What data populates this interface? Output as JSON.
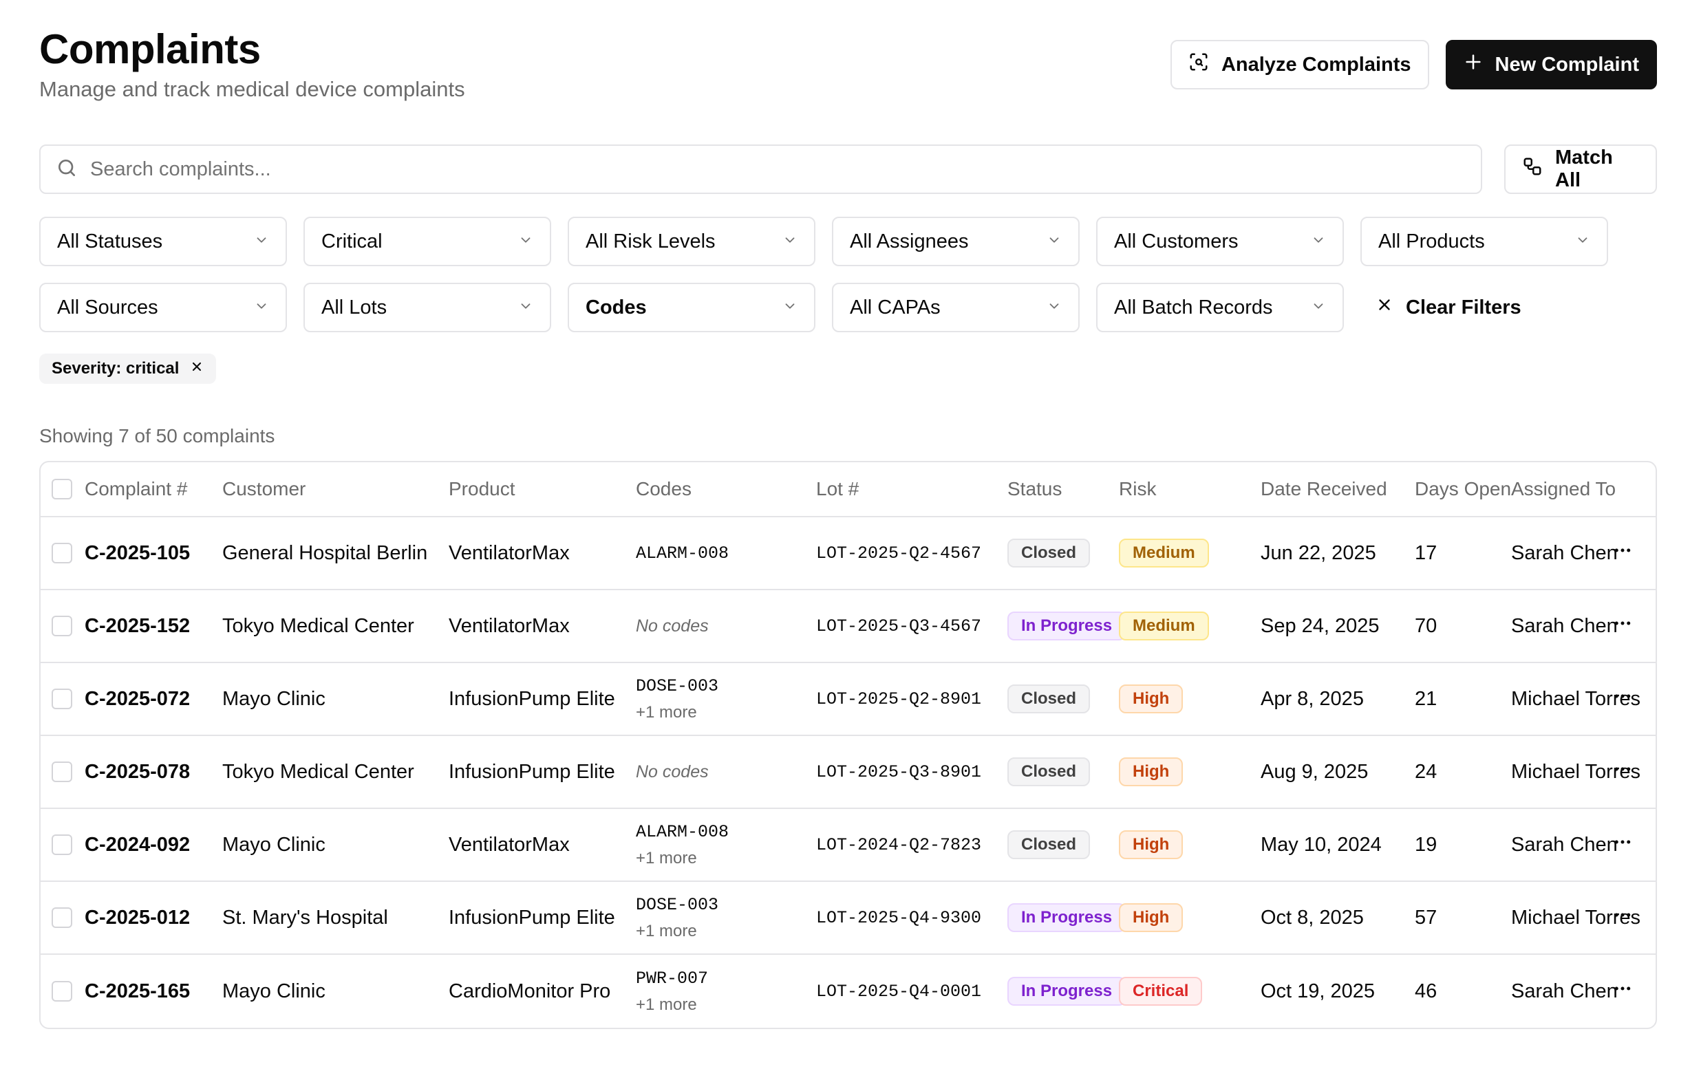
{
  "header": {
    "title": "Complaints",
    "subtitle": "Manage and track medical device complaints",
    "analyze_label": "Analyze Complaints",
    "new_label": "New Complaint"
  },
  "search": {
    "placeholder": "Search complaints...",
    "value": "",
    "match_label": "Match All"
  },
  "filters": [
    {
      "name": "status-filter",
      "label": "All Statuses",
      "bold": false
    },
    {
      "name": "severity-filter",
      "label": "Critical",
      "bold": false
    },
    {
      "name": "risk-filter",
      "label": "All Risk Levels",
      "bold": false
    },
    {
      "name": "assignee-filter",
      "label": "All Assignees",
      "bold": false
    },
    {
      "name": "customer-filter",
      "label": "All Customers",
      "bold": false
    },
    {
      "name": "product-filter",
      "label": "All Products",
      "bold": false
    },
    {
      "name": "source-filter",
      "label": "All Sources",
      "bold": false
    },
    {
      "name": "lot-filter",
      "label": "All Lots",
      "bold": false
    },
    {
      "name": "codes-filter",
      "label": "Codes",
      "bold": true
    },
    {
      "name": "capa-filter",
      "label": "All CAPAs",
      "bold": false
    },
    {
      "name": "batch-filter",
      "label": "All Batch Records",
      "bold": false
    }
  ],
  "clear_filters_label": "Clear Filters",
  "active_chip": "Severity: critical",
  "showing_text": "Showing 7 of 50 complaints",
  "table": {
    "columns": [
      "Complaint #",
      "Customer",
      "Product",
      "Codes",
      "Lot #",
      "Status",
      "Risk",
      "Date Received",
      "Days Open",
      "Assigned To"
    ],
    "rows": [
      {
        "id": "C-2025-105",
        "customer": "General Hospital Berlin",
        "product": "VentilatorMax",
        "code": "ALARM-008",
        "more": "",
        "lot": "LOT-2025-Q2-4567",
        "status": "Closed",
        "risk": "Medium",
        "date": "Jun 22, 2025",
        "days": "17",
        "assigned": "Sarah Chen"
      },
      {
        "id": "C-2025-152",
        "customer": "Tokyo Medical Center",
        "product": "VentilatorMax",
        "code": "",
        "more": "",
        "lot": "LOT-2025-Q3-4567",
        "status": "In Progress",
        "risk": "Medium",
        "date": "Sep 24, 2025",
        "days": "70",
        "assigned": "Sarah Chen"
      },
      {
        "id": "C-2025-072",
        "customer": "Mayo Clinic",
        "product": "InfusionPump Elite",
        "code": "DOSE-003",
        "more": "+1 more",
        "lot": "LOT-2025-Q2-8901",
        "status": "Closed",
        "risk": "High",
        "date": "Apr 8, 2025",
        "days": "21",
        "assigned": "Michael Torres"
      },
      {
        "id": "C-2025-078",
        "customer": "Tokyo Medical Center",
        "product": "InfusionPump Elite",
        "code": "",
        "more": "",
        "lot": "LOT-2025-Q3-8901",
        "status": "Closed",
        "risk": "High",
        "date": "Aug 9, 2025",
        "days": "24",
        "assigned": "Michael Torres"
      },
      {
        "id": "C-2024-092",
        "customer": "Mayo Clinic",
        "product": "VentilatorMax",
        "code": "ALARM-008",
        "more": "+1 more",
        "lot": "LOT-2024-Q2-7823",
        "status": "Closed",
        "risk": "High",
        "date": "May 10, 2024",
        "days": "19",
        "assigned": "Sarah Chen"
      },
      {
        "id": "C-2025-012",
        "customer": "St. Mary's Hospital",
        "product": "InfusionPump Elite",
        "code": "DOSE-003",
        "more": "+1 more",
        "lot": "LOT-2025-Q4-9300",
        "status": "In Progress",
        "risk": "High",
        "date": "Oct 8, 2025",
        "days": "57",
        "assigned": "Michael Torres"
      },
      {
        "id": "C-2025-165",
        "customer": "Mayo Clinic",
        "product": "CardioMonitor Pro",
        "code": "PWR-007",
        "more": "+1 more",
        "lot": "LOT-2025-Q4-0001",
        "status": "In Progress",
        "risk": "Critical",
        "date": "Oct 19, 2025",
        "days": "46",
        "assigned": "Sarah Chen"
      }
    ],
    "no_codes_text": "No codes",
    "more_icon": "more-horizontal-icon"
  },
  "colors": {
    "primary": "#111111",
    "border": "#e4e4e7",
    "muted_text": "#6b6b6b",
    "status_closed": {
      "bg": "#f4f4f5",
      "fg": "#404040",
      "border": "#e4e4e7"
    },
    "status_in_progress": {
      "bg": "#f5edff",
      "fg": "#7e22ce",
      "border": "#e9d5ff"
    },
    "risk_medium": {
      "bg": "#fef7d1",
      "fg": "#a16207",
      "border": "#fde68a"
    },
    "risk_high": {
      "bg": "#fff1e6",
      "fg": "#c2410c",
      "border": "#fed7aa"
    },
    "risk_critical": {
      "bg": "#fff0f0",
      "fg": "#dc2626",
      "border": "#fecaca"
    }
  }
}
